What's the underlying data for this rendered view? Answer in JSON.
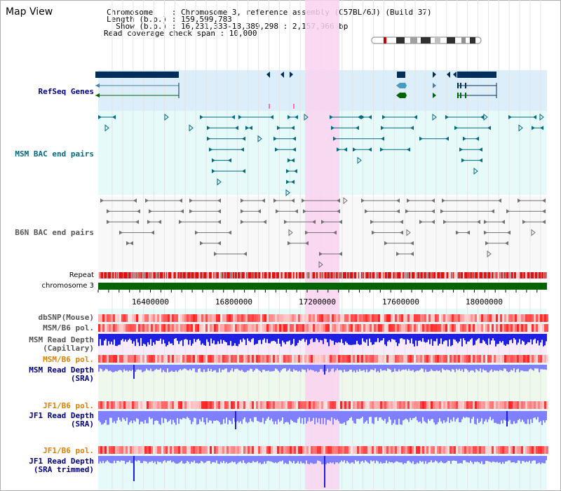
{
  "header": {
    "title": "Map View",
    "lines": [
      "Chromosome    : Chromosome 3, reference assembly (C57BL/6J) (Build 37)",
      "Length (b.p.) : 159,599,783",
      "  Show (b.p.) : 16,231,333-18,389,298 : 2,157,966 bp",
      "Read coverage check span : 10,000"
    ]
  },
  "tracks": {
    "refseq": "RefSeq Genes",
    "msm_bac": "MSM BAC end pairs",
    "b6n_bac": "B6N BAC end pairs",
    "repeat": "Repeat",
    "chromosome": "chromosome 3",
    "dbsnp": "dbSNP(Mouse)",
    "msm_b6_pol_1": "MSM/B6 pol.",
    "msm_read_depth_cap_1": "MSM Read Depth",
    "msm_read_depth_cap_2": "(Capillary)",
    "msm_b6_pol_2": "MSM/B6 pol.",
    "msm_read_depth_sra_1": "MSM Read Depth",
    "msm_read_depth_sra_2": "(SRA)",
    "jf1_b6_pol_1": "JF1/B6 pol.",
    "jf1_read_depth_sra_1": "JF1 Read Depth",
    "jf1_read_depth_sra_2": "(SRA)",
    "jf1_b6_pol_2": "JF1/B6 pol.",
    "jf1_read_depth_trim_1": "JF1 Read Depth",
    "jf1_read_depth_trim_2": "(SRA trimmed)"
  },
  "axis": {
    "ticks": [
      "16400000",
      "16800000",
      "17200000",
      "17600000",
      "18000000"
    ]
  },
  "colors": {
    "refseq_bg": "#dbeefa",
    "bac_bg": "#e6fafa",
    "highlight": "#fad2f0",
    "gene": "#002e5c",
    "msm": "#006a80",
    "b6n": "#606060",
    "chrom": "#006400",
    "repeat": "#e01010",
    "pol": "#f08080",
    "depth_cap": "#2020e0",
    "depth_sra": "#8080ff",
    "orange_label": "#e08000",
    "navy_label": "#000080",
    "teal_label": "#006a80"
  }
}
